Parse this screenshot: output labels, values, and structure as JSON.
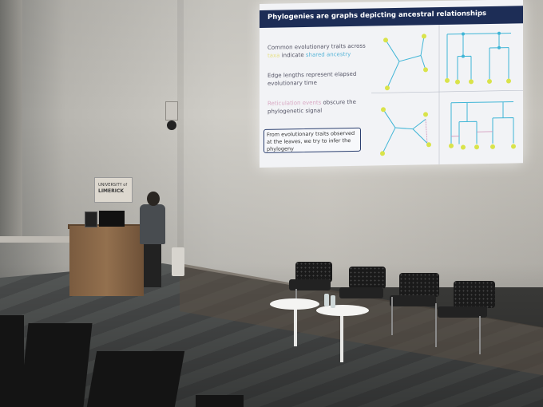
{
  "slide": {
    "title": "Phylogenies are graphs depicting ancestral relationships",
    "bullet1_a": "Common evolutionary traits across ",
    "bullet1_taxa": "taxa",
    "bullet1_b": " indicate ",
    "bullet1_ancestry": "shared ancestry",
    "bullet2": "Edge lengths represent elapsed evolutionary time",
    "bullet3_a": "Reticulation events",
    "bullet3_b": " obscure the phylogenetic signal",
    "box_text": "From evolutionary traits observed at the leaves, we try to infer the phylogeny",
    "colors": {
      "header": "#1d2d56",
      "accent_yellow": "#d9e34a",
      "accent_blue": "#3fb5d6",
      "accent_pink": "#cf8fb6"
    }
  },
  "sign": {
    "line1": "UNIVERSITY of",
    "line2": "LIMERICK"
  }
}
